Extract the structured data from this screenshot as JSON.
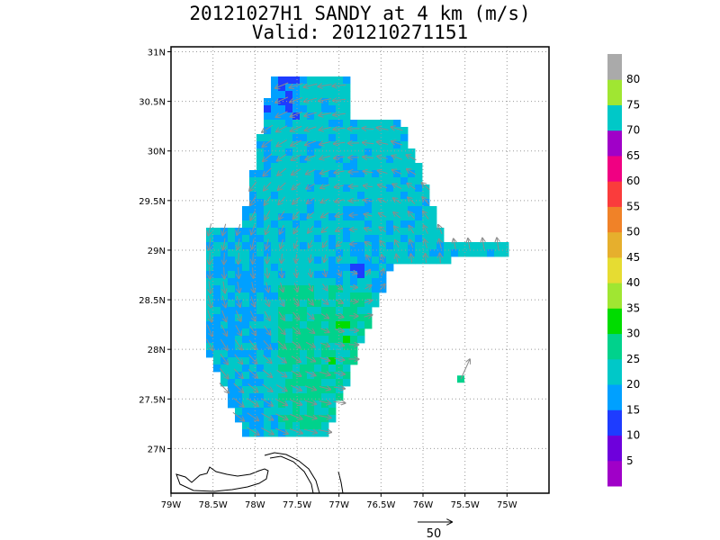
{
  "title": "20121027H1 SANDY at 4 km (m/s)",
  "subtitle": "Valid: 201210271151",
  "axes": {
    "lon_ticks": [
      "79W",
      "78.5W",
      "78W",
      "77.5W",
      "77W",
      "76.5W",
      "76W",
      "75.5W",
      "75W"
    ],
    "lat_ticks": [
      "31N",
      "30.5N",
      "30N",
      "29.5N",
      "29N",
      "28.5N",
      "28N",
      "27.5N",
      "27N"
    ]
  },
  "colorbar": {
    "labels": [
      "5",
      "10",
      "15",
      "20",
      "25",
      "30",
      "35",
      "40",
      "45",
      "50",
      "55",
      "60",
      "65",
      "70",
      "75",
      "80"
    ],
    "colors": [
      "#a000c8",
      "#6e00dc",
      "#1e3cff",
      "#00a0ff",
      "#00c8c8",
      "#00d28c",
      "#00dc00",
      "#a0e632",
      "#e6dc32",
      "#e6af2d",
      "#f08228",
      "#fa3c3c",
      "#f00082",
      "#a000c8",
      "#00c8c8",
      "#a0e632",
      "#aaaaaa"
    ]
  },
  "reference_vector": {
    "label": "50"
  },
  "chart_data": {
    "type": "heatmap",
    "title": "20121027H1 SANDY at 4 km (m/s)",
    "subtitle": "Valid: 201210271151",
    "xlim": [
      -79,
      -74.5
    ],
    "ylim": [
      26.55,
      31.05
    ],
    "storm_center": {
      "lon": -76.8,
      "lat": 28.85
    },
    "coverage_lat_range": [
      27.15,
      30.75
    ],
    "coverage_lon_range": [
      -78.6,
      -75.0
    ],
    "eastern_arm": {
      "lat": 29.0,
      "lon_range": [
        -76.0,
        -75.0
      ]
    },
    "isolated_cell": {
      "lon": -75.55,
      "lat": 27.7
    },
    "dominant_speed_ranges": [
      "20-25",
      "25-30",
      "30-35"
    ]
  }
}
